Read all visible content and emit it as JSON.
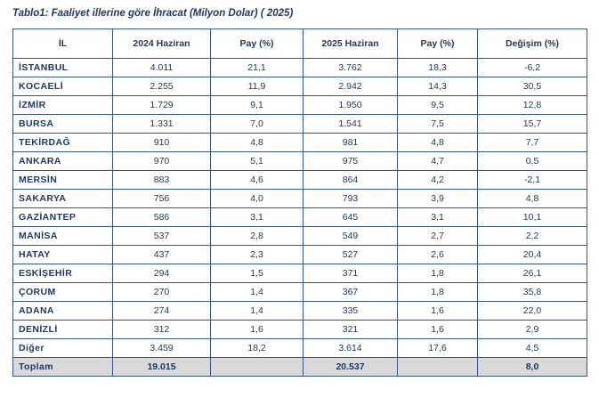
{
  "title": "Tablo1: Faaliyet illerine göre İhracat (Milyon Dolar) ( 2025)",
  "table": {
    "headers": [
      "İL",
      "2024 Haziran",
      "Pay  (%)",
      "2025 Haziran",
      "Pay  (%)",
      "Değişim (%)"
    ],
    "rows": [
      [
        "İSTANBUL",
        "4.011",
        "21,1",
        "3.762",
        "18,3",
        "-6,2"
      ],
      [
        "KOCAELİ",
        "2.255",
        "11,9",
        "2.942",
        "14,3",
        "30,5"
      ],
      [
        "İZMİR",
        "1.729",
        "9,1",
        "1.950",
        "9,5",
        "12,8"
      ],
      [
        "BURSA",
        "1.331",
        "7,0",
        "1.541",
        "7,5",
        "15,7"
      ],
      [
        "TEKİRDAĞ",
        "910",
        "4,8",
        "981",
        "4,8",
        "7,7"
      ],
      [
        "ANKARA",
        "970",
        "5,1",
        "975",
        "4,7",
        "0,5"
      ],
      [
        "MERSİN",
        "883",
        "4,6",
        "864",
        "4,2",
        "-2,1"
      ],
      [
        "SAKARYA",
        "756",
        "4,0",
        "793",
        "3,9",
        "4,8"
      ],
      [
        "GAZİANTEP",
        "586",
        "3,1",
        "645",
        "3,1",
        "10,1"
      ],
      [
        "MANİSA",
        "537",
        "2,8",
        "549",
        "2,7",
        "2,2"
      ],
      [
        "HATAY",
        "437",
        "2,3",
        "527",
        "2,6",
        "20,4"
      ],
      [
        "ESKİŞEHİR",
        "294",
        "1,5",
        "371",
        "1,8",
        "26,1"
      ],
      [
        "ÇORUM",
        "270",
        "1,4",
        "367",
        "1,8",
        "35,8"
      ],
      [
        "ADANA",
        "274",
        "1,4",
        "335",
        "1,6",
        "22,0"
      ],
      [
        "DENİZLİ",
        "312",
        "1,6",
        "321",
        "1,6",
        "2,9"
      ],
      [
        "Diğer",
        "3.459",
        "18,2",
        "3.614",
        "17,6",
        "4,5"
      ]
    ],
    "footer": [
      "Toplam",
      "19.015",
      "",
      "20.537",
      "",
      "8,0"
    ]
  },
  "colors": {
    "title_text": "#1f3864",
    "header_text": "#1f3864",
    "row_label_text": "#1f3864",
    "cell_text": "#17375e",
    "border": "#33548e",
    "footer_bg": "#d9d9d9"
  }
}
